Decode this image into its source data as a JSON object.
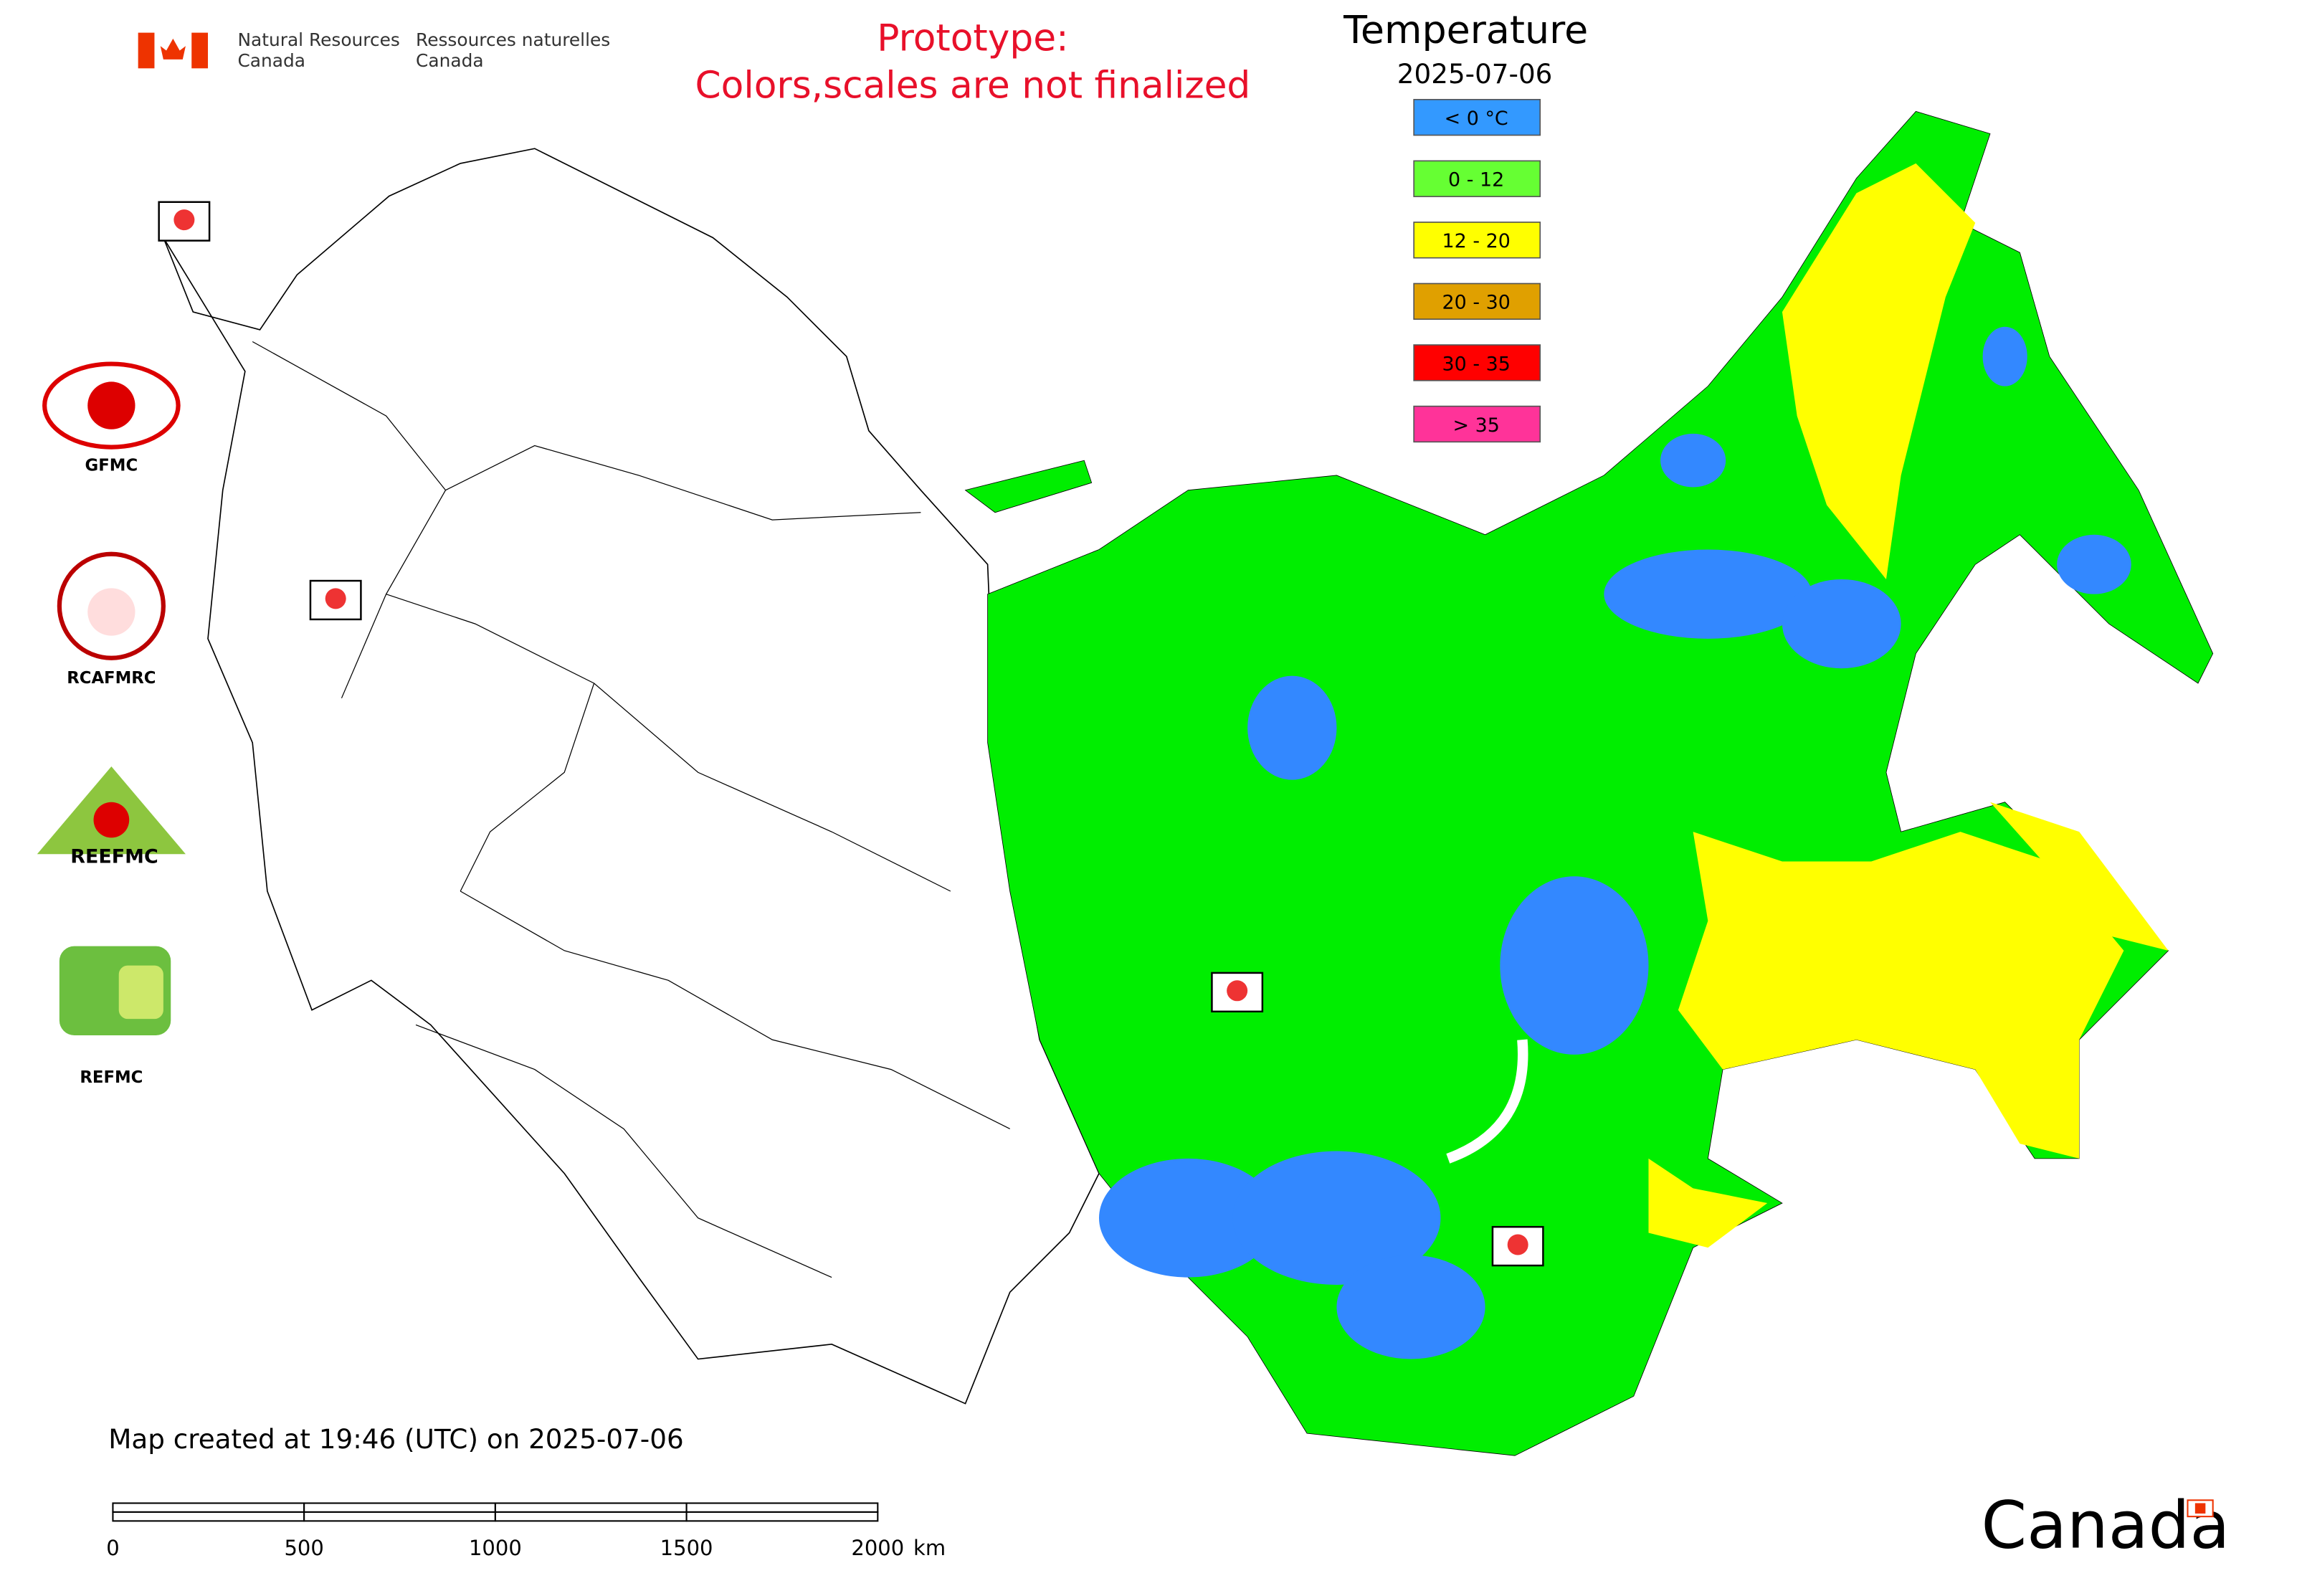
{
  "header": {
    "department_en": [
      "Natural Resources",
      "Canada"
    ],
    "department_fr": [
      "Ressources naturelles",
      "Canada"
    ],
    "notice": [
      "Prototype:",
      "Colors,scales are not finalized"
    ]
  },
  "legend": {
    "title": "Temperature",
    "date": "2025-07-06",
    "items": [
      {
        "label": "< 0 °C",
        "color": "#3399ff"
      },
      {
        "label": "0 - 12",
        "color": "#66ff33"
      },
      {
        "label": "12 - 20",
        "color": "#ffff00"
      },
      {
        "label": "20 - 30",
        "color": "#e0a000"
      },
      {
        "label": "30 - 35",
        "color": "#ff0000"
      },
      {
        "label": "> 35",
        "color": "#ff3399"
      }
    ]
  },
  "logos": [
    "GFMC",
    "RCAFMRC",
    "REEFMC",
    "REFMC"
  ],
  "footer": {
    "created": "Map created at 19:46 (UTC) on 2025-07-06",
    "wordmark": "Canada"
  },
  "scale_bar": {
    "ticks": [
      0,
      500,
      1000,
      1500,
      2000
    ],
    "unit": "km"
  }
}
